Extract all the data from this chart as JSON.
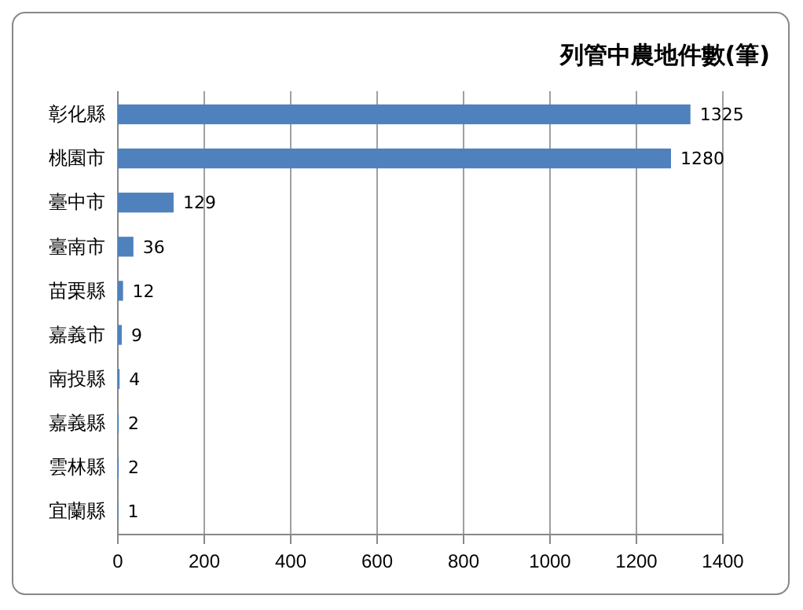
{
  "chart_data": {
    "type": "bar",
    "orientation": "horizontal",
    "title": "列管中農地件數(筆)",
    "categories": [
      "彰化縣",
      "桃園市",
      "臺中市",
      "臺南市",
      "苗栗縣",
      "嘉義市",
      "南投縣",
      "嘉義縣",
      "雲林縣",
      "宜蘭縣"
    ],
    "values": [
      1325,
      1280,
      129,
      36,
      12,
      9,
      4,
      2,
      2,
      1
    ],
    "color": "#4f81bd",
    "xlim": [
      0,
      1400
    ],
    "xticks": [
      0,
      200,
      400,
      600,
      800,
      1000,
      1200,
      1400
    ],
    "grid": "x",
    "data_labels": true
  }
}
